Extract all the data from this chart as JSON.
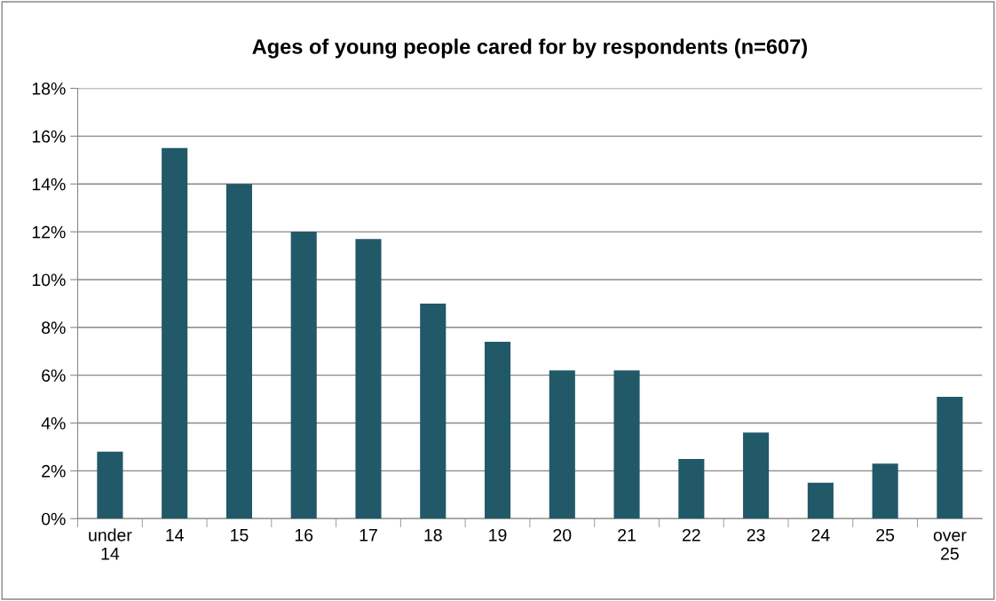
{
  "chart_data": {
    "type": "bar",
    "title": "Ages of young people cared for by respondents (n=607)",
    "categories": [
      "under 14",
      "14",
      "15",
      "16",
      "17",
      "18",
      "19",
      "20",
      "21",
      "22",
      "23",
      "24",
      "25",
      "over 25"
    ],
    "values": [
      2.8,
      15.5,
      14.0,
      12.0,
      11.7,
      9.0,
      7.4,
      6.2,
      6.2,
      2.5,
      3.6,
      1.5,
      2.3,
      5.1
    ],
    "color": "#215968",
    "ylim": [
      0,
      18
    ],
    "yticks": [
      {
        "value": 0,
        "label": "0%"
      },
      {
        "value": 2,
        "label": "2%"
      },
      {
        "value": 4,
        "label": "4%"
      },
      {
        "value": 6,
        "label": "6%"
      },
      {
        "value": 8,
        "label": "8%"
      },
      {
        "value": 10,
        "label": "10%"
      },
      {
        "value": 12,
        "label": "12%"
      },
      {
        "value": 14,
        "label": "14%"
      },
      {
        "value": 16,
        "label": "16%"
      },
      {
        "value": 18,
        "label": "18%"
      }
    ],
    "grid": "y",
    "legend": false
  }
}
